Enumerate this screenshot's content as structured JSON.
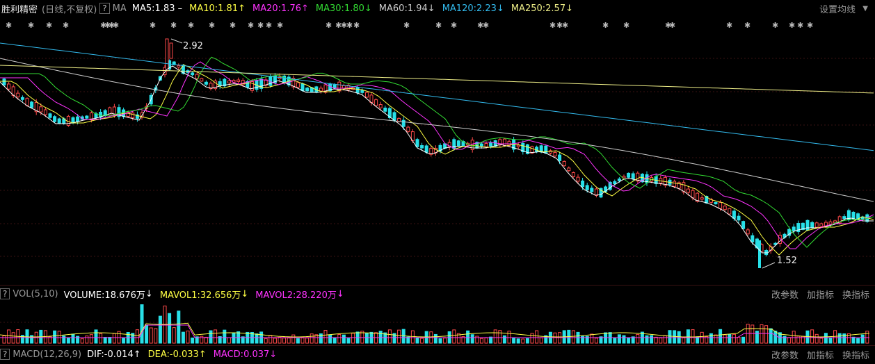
{
  "header": {
    "stock_name": "胜利精密",
    "mode": "(日线,不复权)",
    "help": "?",
    "ma_label": "MA",
    "ma5": "MA5:1.83 –",
    "ma10": "MA10:1.81",
    "ma20": "MA20:1.76",
    "ma30": "MA30:1.80",
    "ma60": "MA60:1.94",
    "ma120": "MA120:2.23",
    "ma250": "MA250:2.57",
    "settings": "设置均线",
    "arrow_up": "↑",
    "arrow_down": "↓"
  },
  "price_chart": {
    "high_label": "2.92",
    "low_label": "1.52"
  },
  "volume_bar": {
    "help": "?",
    "title": "VOL(5,10)",
    "volume": "VOLUME:18.676万",
    "mavol1": "MAVOL1:32.656万",
    "mavol2": "MAVOL2:28.220万",
    "change_params": "改参数",
    "add_indicator": "加指标",
    "switch_indicator": "换指标"
  },
  "macd_bar": {
    "help": "?",
    "title": "MACD(12,26,9)",
    "dif": "DIF:-0.014",
    "dea": "DEA:-0.033",
    "macd": "MACD:0.037",
    "change_params": "改参数",
    "add_indicator": "加指标",
    "switch_indicator": "换指标"
  },
  "colors": {
    "up": "#ff4a4a",
    "down": "#28e0e8",
    "ma5": "#ffffff",
    "ma10": "#ffff44",
    "ma20": "#ff33ff",
    "ma30": "#33dd33",
    "ma60": "#cccccc",
    "ma120": "#33bbee",
    "ma250": "#eeee88"
  }
}
